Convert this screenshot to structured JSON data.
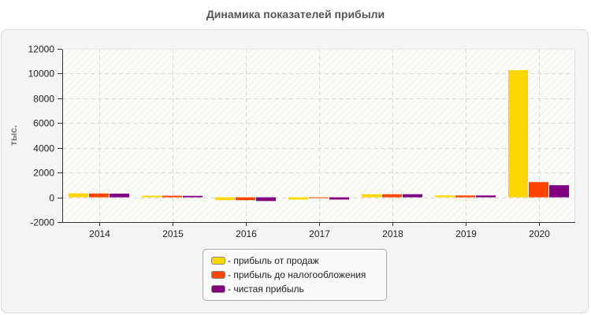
{
  "title": "Динамика показателей прибыли",
  "chart_data": {
    "type": "bar",
    "title": "Динамика показателей прибыли",
    "xlabel": "",
    "ylabel": "тыс.",
    "categories": [
      "2014",
      "2015",
      "2016",
      "2017",
      "2018",
      "2019",
      "2020"
    ],
    "series": [
      {
        "name": "прибыль от продаж",
        "color": "#ffd700",
        "values": [
          320,
          130,
          -230,
          -180,
          250,
          150,
          10280
        ]
      },
      {
        "name": "прибыль до налогообложения",
        "color": "#ff4500",
        "values": [
          310,
          130,
          -230,
          -40,
          250,
          150,
          1230
        ]
      },
      {
        "name": "чистая прибыль",
        "color": "#800080",
        "values": [
          300,
          120,
          -300,
          -180,
          250,
          150,
          980
        ]
      }
    ],
    "ylim": [
      -2000,
      12000
    ],
    "yticks": [
      -2000,
      0,
      2000,
      4000,
      6000,
      8000,
      10000,
      12000
    ],
    "grid": true,
    "legend_position": "bottom"
  },
  "legend": [
    {
      "label": "- прибыль от продаж",
      "color": "#ffd700"
    },
    {
      "label": "- прибыль до налогообложения",
      "color": "#ff4500"
    },
    {
      "label": "- чистая прибыль",
      "color": "#800080"
    }
  ]
}
